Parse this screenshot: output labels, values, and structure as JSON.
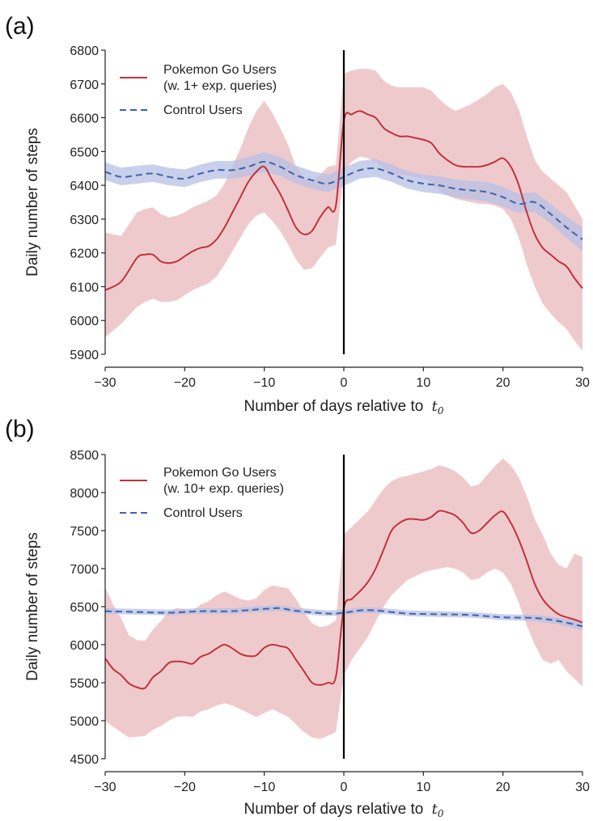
{
  "colors": {
    "pokemon_line": "#c0323c",
    "pokemon_band": "#e8b4b8",
    "control_line": "#3f63a8",
    "control_band": "#b7c0e4",
    "t0_line": "#000000"
  },
  "chart_data": [
    {
      "type": "line",
      "panel_label": "(a)",
      "xlabel": "Number of days relative to",
      "xlabel_symbol": "t",
      "xlabel_subscript": "0",
      "ylabel": "Daily number of steps",
      "xlim": [
        -30,
        30
      ],
      "ylim": [
        5900,
        6800
      ],
      "xticks": [
        -30,
        -20,
        -10,
        0,
        10,
        20,
        30
      ],
      "xtick_labels": [
        "−30",
        "−20",
        "−10",
        "0",
        "10",
        "20",
        "30"
      ],
      "yticks": [
        5900,
        6000,
        6100,
        6200,
        6300,
        6400,
        6500,
        6600,
        6700,
        6800
      ],
      "ytick_labels": [
        "5900",
        "6000",
        "6100",
        "6200",
        "6300",
        "6400",
        "6500",
        "6600",
        "6700",
        "6800"
      ],
      "vline_x": 0,
      "legend_position": "upper-left",
      "series": [
        {
          "name": "Pokemon Go Users",
          "name_line2": "(w. 1+ exp. queries)",
          "style": "solid",
          "x": [
            -30,
            -28,
            -26,
            -25,
            -24,
            -23,
            -22,
            -21,
            -20,
            -19,
            -18,
            -17,
            -16,
            -15,
            -14,
            -13,
            -12,
            -11,
            -10,
            -9,
            -8,
            -7,
            -6,
            -5,
            -4,
            -3,
            -2,
            -1,
            0,
            1,
            2,
            3,
            4,
            5,
            6,
            7,
            8,
            9,
            10,
            11,
            12,
            13,
            14,
            15,
            16,
            17,
            18,
            19,
            20,
            21,
            22,
            23,
            24,
            25,
            26,
            27,
            28,
            29,
            30
          ],
          "values": [
            6090,
            6115,
            6185,
            6195,
            6195,
            6175,
            6170,
            6175,
            6190,
            6205,
            6215,
            6220,
            6240,
            6275,
            6320,
            6365,
            6410,
            6440,
            6455,
            6415,
            6375,
            6325,
            6275,
            6255,
            6265,
            6305,
            6335,
            6340,
            6590,
            6610,
            6620,
            6610,
            6600,
            6570,
            6555,
            6545,
            6545,
            6540,
            6535,
            6525,
            6495,
            6475,
            6460,
            6455,
            6455,
            6455,
            6460,
            6470,
            6480,
            6455,
            6400,
            6320,
            6255,
            6215,
            6195,
            6175,
            6160,
            6125,
            6095
          ],
          "lower": [
            5950,
            5990,
            6040,
            6055,
            6065,
            6055,
            6055,
            6060,
            6075,
            6090,
            6100,
            6110,
            6130,
            6165,
            6205,
            6245,
            6285,
            6310,
            6320,
            6295,
            6265,
            6225,
            6180,
            6150,
            6155,
            6185,
            6215,
            6225,
            6440,
            6470,
            6485,
            6480,
            6470,
            6450,
            6435,
            6430,
            6430,
            6425,
            6420,
            6410,
            6385,
            6370,
            6360,
            6355,
            6350,
            6345,
            6345,
            6340,
            6330,
            6300,
            6245,
            6165,
            6100,
            6050,
            6020,
            5995,
            5975,
            5940,
            5910
          ],
          "upper": [
            6260,
            6250,
            6320,
            6330,
            6335,
            6315,
            6305,
            6310,
            6320,
            6335,
            6345,
            6355,
            6370,
            6405,
            6455,
            6510,
            6570,
            6620,
            6650,
            6615,
            6570,
            6520,
            6455,
            6420,
            6410,
            6430,
            6455,
            6460,
            6730,
            6740,
            6745,
            6745,
            6740,
            6710,
            6695,
            6690,
            6690,
            6690,
            6690,
            6680,
            6655,
            6635,
            6620,
            6630,
            6640,
            6655,
            6670,
            6690,
            6700,
            6675,
            6625,
            6545,
            6475,
            6440,
            6420,
            6400,
            6380,
            6340,
            6300
          ]
        },
        {
          "name": "Control Users",
          "style": "dashed",
          "x": [
            -30,
            -28,
            -26,
            -24,
            -22,
            -20,
            -18,
            -16,
            -14,
            -12,
            -10,
            -8,
            -6,
            -4,
            -2,
            0,
            2,
            4,
            6,
            8,
            10,
            12,
            14,
            16,
            18,
            20,
            22,
            24,
            26,
            28,
            30
          ],
          "values": [
            6440,
            6425,
            6430,
            6435,
            6425,
            6420,
            6435,
            6445,
            6445,
            6455,
            6470,
            6455,
            6430,
            6415,
            6405,
            6425,
            6445,
            6450,
            6435,
            6415,
            6405,
            6400,
            6390,
            6385,
            6380,
            6365,
            6345,
            6350,
            6315,
            6275,
            6240
          ],
          "lower": [
            6415,
            6400,
            6405,
            6410,
            6400,
            6395,
            6410,
            6420,
            6420,
            6428,
            6440,
            6428,
            6405,
            6390,
            6380,
            6398,
            6420,
            6425,
            6410,
            6390,
            6380,
            6375,
            6365,
            6358,
            6352,
            6337,
            6318,
            6322,
            6287,
            6245,
            6205
          ],
          "upper": [
            6468,
            6452,
            6458,
            6462,
            6452,
            6447,
            6462,
            6472,
            6472,
            6484,
            6498,
            6484,
            6458,
            6442,
            6432,
            6452,
            6472,
            6478,
            6462,
            6442,
            6432,
            6427,
            6417,
            6413,
            6410,
            6395,
            6375,
            6380,
            6345,
            6307,
            6275
          ]
        }
      ]
    },
    {
      "type": "line",
      "panel_label": "(b)",
      "xlabel": "Number of days relative to",
      "xlabel_symbol": "t",
      "xlabel_subscript": "0",
      "ylabel": "Daily number of steps",
      "xlim": [
        -30,
        30
      ],
      "ylim": [
        4500,
        8500
      ],
      "xticks": [
        -30,
        -20,
        -10,
        0,
        10,
        20,
        30
      ],
      "xtick_labels": [
        "−30",
        "−20",
        "−10",
        "0",
        "10",
        "20",
        "30"
      ],
      "yticks": [
        4500,
        5000,
        5500,
        6000,
        6500,
        7000,
        7500,
        8000,
        8500
      ],
      "ytick_labels": [
        "4500",
        "5000",
        "5500",
        "6000",
        "6500",
        "7000",
        "7500",
        "8000",
        "8500"
      ],
      "vline_x": 0,
      "legend_position": "upper-left",
      "series": [
        {
          "name": "Pokemon Go Users",
          "name_line2": "(w. 10+ exp. queries)",
          "style": "solid",
          "x": [
            -30,
            -29,
            -28,
            -27,
            -26,
            -25,
            -24,
            -23,
            -22,
            -21,
            -20,
            -19,
            -18,
            -17,
            -16,
            -15,
            -14,
            -13,
            -12,
            -11,
            -10,
            -9,
            -8,
            -7,
            -6,
            -5,
            -4,
            -3,
            -2,
            -1,
            0,
            1,
            2,
            3,
            4,
            5,
            6,
            7,
            8,
            9,
            10,
            11,
            12,
            13,
            14,
            15,
            16,
            17,
            18,
            19,
            20,
            21,
            22,
            23,
            24,
            25,
            26,
            27,
            28,
            29,
            30
          ],
          "values": [
            5820,
            5680,
            5600,
            5490,
            5440,
            5430,
            5570,
            5650,
            5760,
            5780,
            5770,
            5750,
            5840,
            5880,
            5950,
            6000,
            5950,
            5880,
            5850,
            5860,
            5960,
            6000,
            5980,
            5950,
            5800,
            5650,
            5500,
            5470,
            5500,
            5580,
            6480,
            6600,
            6700,
            6820,
            7000,
            7250,
            7500,
            7600,
            7650,
            7650,
            7640,
            7680,
            7760,
            7740,
            7700,
            7600,
            7470,
            7500,
            7600,
            7700,
            7750,
            7600,
            7380,
            7100,
            6800,
            6600,
            6480,
            6400,
            6360,
            6330,
            6290
          ],
          "lower": [
            5000,
            4920,
            4850,
            4780,
            4790,
            4800,
            4880,
            4930,
            5000,
            5050,
            5060,
            5050,
            5120,
            5150,
            5200,
            5230,
            5200,
            5150,
            5100,
            5050,
            5100,
            5150,
            5100,
            5050,
            4950,
            4850,
            4780,
            4760,
            4800,
            4850,
            5600,
            5800,
            5950,
            6100,
            6300,
            6500,
            6650,
            6750,
            6850,
            6900,
            6950,
            6980,
            7000,
            7020,
            7000,
            6950,
            6850,
            6870,
            6950,
            7000,
            6950,
            6800,
            6550,
            6250,
            6000,
            5800,
            5750,
            5800,
            5650,
            5550,
            5450
          ],
          "upper": [
            6760,
            6530,
            6350,
            6120,
            6060,
            6050,
            6200,
            6310,
            6440,
            6480,
            6470,
            6450,
            6530,
            6570,
            6650,
            6700,
            6650,
            6600,
            6580,
            6610,
            6720,
            6780,
            6760,
            6740,
            6600,
            6430,
            6280,
            6230,
            6250,
            6320,
            7450,
            7550,
            7650,
            7750,
            7900,
            8050,
            8150,
            8200,
            8220,
            8250,
            8280,
            8310,
            8360,
            8330,
            8280,
            8200,
            8080,
            8110,
            8230,
            8350,
            8450,
            8360,
            8200,
            7950,
            7650,
            7450,
            7200,
            7050,
            7000,
            7200,
            7150
          ]
        },
        {
          "name": "Control Users",
          "style": "dashed",
          "x": [
            -30,
            -26,
            -22,
            -18,
            -14,
            -10,
            -8,
            -6,
            -2,
            0,
            2,
            4,
            8,
            12,
            16,
            20,
            24,
            27,
            30
          ],
          "values": [
            6440,
            6430,
            6420,
            6440,
            6440,
            6470,
            6480,
            6445,
            6410,
            6420,
            6450,
            6450,
            6410,
            6400,
            6390,
            6360,
            6350,
            6310,
            6240
          ],
          "lower": [
            6405,
            6395,
            6385,
            6405,
            6405,
            6435,
            6445,
            6410,
            6375,
            6385,
            6415,
            6415,
            6375,
            6365,
            6355,
            6325,
            6310,
            6265,
            6190
          ],
          "upper": [
            6480,
            6470,
            6460,
            6480,
            6480,
            6510,
            6520,
            6485,
            6450,
            6460,
            6490,
            6490,
            6450,
            6440,
            6430,
            6400,
            6390,
            6355,
            6290
          ]
        }
      ]
    }
  ]
}
